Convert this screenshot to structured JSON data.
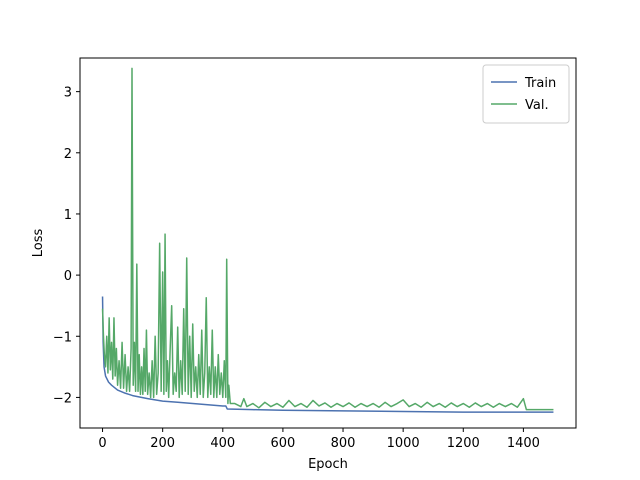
{
  "chart_data": {
    "type": "line",
    "title": "",
    "xlabel": "Epoch",
    "ylabel": "Loss",
    "xlim": [
      -75,
      1575
    ],
    "ylim": [
      -2.5,
      3.55
    ],
    "xticks": [
      0,
      200,
      400,
      600,
      800,
      1000,
      1200,
      1400
    ],
    "yticks": [
      -2,
      -1,
      0,
      1,
      2,
      3
    ],
    "grid": false,
    "legend": "top-right",
    "series": [
      {
        "name": "Train",
        "color": "#4c72b0",
        "points": [
          [
            0,
            -0.35
          ],
          [
            2,
            -1.1
          ],
          [
            5,
            -1.5
          ],
          [
            10,
            -1.65
          ],
          [
            20,
            -1.75
          ],
          [
            30,
            -1.8
          ],
          [
            50,
            -1.88
          ],
          [
            75,
            -1.93
          ],
          [
            100,
            -1.97
          ],
          [
            150,
            -2.02
          ],
          [
            200,
            -2.06
          ],
          [
            250,
            -2.08
          ],
          [
            300,
            -2.1
          ],
          [
            350,
            -2.12
          ],
          [
            400,
            -2.14
          ],
          [
            410,
            -2.14
          ],
          [
            415,
            -2.19
          ],
          [
            500,
            -2.2
          ],
          [
            600,
            -2.21
          ],
          [
            800,
            -2.22
          ],
          [
            1000,
            -2.23
          ],
          [
            1200,
            -2.24
          ],
          [
            1400,
            -2.24
          ],
          [
            1500,
            -2.24
          ]
        ]
      },
      {
        "name": "Val.",
        "color": "#55a868",
        "points": [
          [
            0,
            -0.55
          ],
          [
            3,
            -1.0
          ],
          [
            6,
            -1.3
          ],
          [
            10,
            -1.5
          ],
          [
            14,
            -1.0
          ],
          [
            18,
            -1.6
          ],
          [
            22,
            -0.7
          ],
          [
            26,
            -1.55
          ],
          [
            30,
            -1.1
          ],
          [
            34,
            -1.7
          ],
          [
            38,
            -0.7
          ],
          [
            42,
            -1.65
          ],
          [
            46,
            -1.2
          ],
          [
            50,
            -1.8
          ],
          [
            55,
            -1.4
          ],
          [
            60,
            -1.85
          ],
          [
            65,
            -1.1
          ],
          [
            70,
            -1.85
          ],
          [
            75,
            -1.3
          ],
          [
            80,
            -1.9
          ],
          [
            85,
            -1.5
          ],
          [
            90,
            -1.9
          ],
          [
            95,
            -1.2
          ],
          [
            98,
            3.38
          ],
          [
            102,
            -1.8
          ],
          [
            106,
            -1.1
          ],
          [
            110,
            -1.9
          ],
          [
            114,
            0.18
          ],
          [
            118,
            -1.9
          ],
          [
            122,
            -1.3
          ],
          [
            126,
            -1.95
          ],
          [
            130,
            -1.5
          ],
          [
            134,
            -1.95
          ],
          [
            138,
            -1.2
          ],
          [
            142,
            -1.9
          ],
          [
            146,
            -0.9
          ],
          [
            150,
            -1.95
          ],
          [
            155,
            -1.6
          ],
          [
            160,
            -2.0
          ],
          [
            165,
            -1.4
          ],
          [
            170,
            -2.0
          ],
          [
            175,
            -1.0
          ],
          [
            180,
            -1.95
          ],
          [
            185,
            -1.6
          ],
          [
            190,
            0.52
          ],
          [
            195,
            -1.9
          ],
          [
            200,
            0.05
          ],
          [
            204,
            -1.95
          ],
          [
            208,
            0.67
          ],
          [
            212,
            -1.9
          ],
          [
            216,
            -1.4
          ],
          [
            220,
            -2.0
          ],
          [
            225,
            -1.2
          ],
          [
            230,
            -0.5
          ],
          [
            235,
            -1.95
          ],
          [
            240,
            -1.6
          ],
          [
            245,
            -1.9
          ],
          [
            250,
            -0.85
          ],
          [
            255,
            -2.0
          ],
          [
            260,
            -1.4
          ],
          [
            265,
            -1.95
          ],
          [
            270,
            -0.55
          ],
          [
            275,
            -1.9
          ],
          [
            280,
            0.28
          ],
          [
            285,
            -1.95
          ],
          [
            290,
            -1.0
          ],
          [
            295,
            -2.0
          ],
          [
            300,
            -0.8
          ],
          [
            305,
            -1.9
          ],
          [
            310,
            -1.5
          ],
          [
            315,
            -2.0
          ],
          [
            320,
            -1.3
          ],
          [
            325,
            -1.95
          ],
          [
            330,
            -0.9
          ],
          [
            335,
            -2.0
          ],
          [
            340,
            -1.6
          ],
          [
            345,
            -0.37
          ],
          [
            350,
            -2.0
          ],
          [
            355,
            -1.5
          ],
          [
            360,
            -1.95
          ],
          [
            365,
            -0.9
          ],
          [
            370,
            -2.0
          ],
          [
            375,
            -1.5
          ],
          [
            380,
            -2.0
          ],
          [
            385,
            -1.3
          ],
          [
            390,
            -1.95
          ],
          [
            395,
            -1.6
          ],
          [
            400,
            -2.0
          ],
          [
            405,
            -1.4
          ],
          [
            410,
            -2.0
          ],
          [
            413,
            0.26
          ],
          [
            417,
            -2.1
          ],
          [
            420,
            -1.8
          ],
          [
            425,
            -2.1
          ],
          [
            440,
            -2.1
          ],
          [
            460,
            -2.15
          ],
          [
            470,
            -2.02
          ],
          [
            480,
            -2.15
          ],
          [
            500,
            -2.1
          ],
          [
            520,
            -2.17
          ],
          [
            540,
            -2.08
          ],
          [
            560,
            -2.15
          ],
          [
            580,
            -2.1
          ],
          [
            600,
            -2.16
          ],
          [
            620,
            -2.05
          ],
          [
            640,
            -2.15
          ],
          [
            660,
            -2.1
          ],
          [
            680,
            -2.16
          ],
          [
            700,
            -2.05
          ],
          [
            720,
            -2.14
          ],
          [
            740,
            -2.09
          ],
          [
            760,
            -2.16
          ],
          [
            780,
            -2.1
          ],
          [
            800,
            -2.15
          ],
          [
            820,
            -2.09
          ],
          [
            840,
            -2.16
          ],
          [
            860,
            -2.1
          ],
          [
            880,
            -2.15
          ],
          [
            900,
            -2.1
          ],
          [
            920,
            -2.16
          ],
          [
            940,
            -2.08
          ],
          [
            960,
            -2.15
          ],
          [
            980,
            -2.1
          ],
          [
            1000,
            -2.04
          ],
          [
            1020,
            -2.15
          ],
          [
            1040,
            -2.1
          ],
          [
            1060,
            -2.16
          ],
          [
            1080,
            -2.08
          ],
          [
            1100,
            -2.15
          ],
          [
            1120,
            -2.1
          ],
          [
            1140,
            -2.16
          ],
          [
            1160,
            -2.09
          ],
          [
            1180,
            -2.15
          ],
          [
            1200,
            -2.1
          ],
          [
            1220,
            -2.16
          ],
          [
            1240,
            -2.09
          ],
          [
            1260,
            -2.15
          ],
          [
            1280,
            -2.1
          ],
          [
            1300,
            -2.16
          ],
          [
            1320,
            -2.1
          ],
          [
            1340,
            -2.15
          ],
          [
            1360,
            -2.1
          ],
          [
            1380,
            -2.16
          ],
          [
            1400,
            -2.02
          ],
          [
            1410,
            -2.2
          ],
          [
            1450,
            -2.2
          ],
          [
            1500,
            -2.2
          ]
        ]
      }
    ]
  }
}
